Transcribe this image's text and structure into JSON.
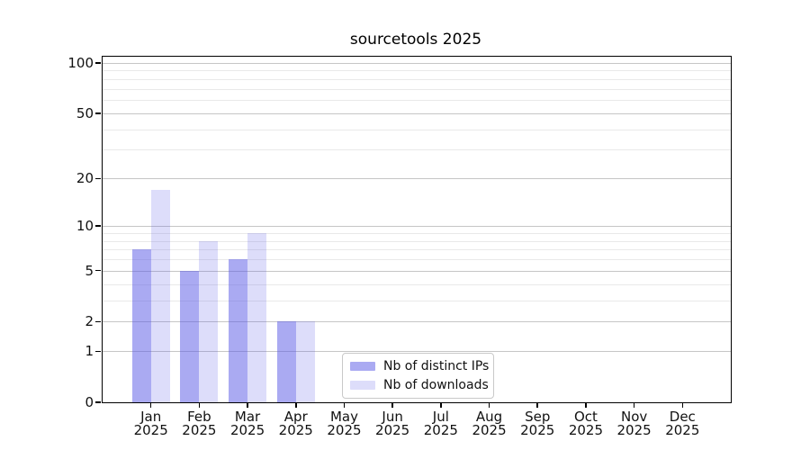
{
  "figure": {
    "title": "sourcetools 2025"
  },
  "legend": {
    "items": [
      {
        "label": "Nb of distinct IPs",
        "color": "rgba(85,85,230,0.5)"
      },
      {
        "label": "Nb of downloads",
        "color": "rgba(85,85,230,0.2)"
      }
    ]
  },
  "colors": {
    "grid_major": "#c6c6c6",
    "grid_minor": "#e9e9e9",
    "spine": "#000000",
    "legend_border": "#c9c9c9"
  },
  "chart_data": {
    "type": "bar",
    "title": "sourcetools 2025",
    "xlabel": "",
    "ylabel": "",
    "grid": true,
    "legend_position": "lower center, inside axes",
    "x": [
      {
        "month": "Jan",
        "year": "2025"
      },
      {
        "month": "Feb",
        "year": "2025"
      },
      {
        "month": "Mar",
        "year": "2025"
      },
      {
        "month": "Apr",
        "year": "2025"
      },
      {
        "month": "May",
        "year": "2025"
      },
      {
        "month": "Jun",
        "year": "2025"
      },
      {
        "month": "Jul",
        "year": "2025"
      },
      {
        "month": "Aug",
        "year": "2025"
      },
      {
        "month": "Sep",
        "year": "2025"
      },
      {
        "month": "Oct",
        "year": "2025"
      },
      {
        "month": "Nov",
        "year": "2025"
      },
      {
        "month": "Dec",
        "year": "2025"
      }
    ],
    "series": [
      {
        "name": "Nb of distinct IPs",
        "color": "rgba(85,85,230,0.5)",
        "values": [
          7,
          5,
          6,
          2,
          0,
          0,
          0,
          0,
          0,
          0,
          0,
          0
        ]
      },
      {
        "name": "Nb of downloads",
        "color": "rgba(85,85,230,0.2)",
        "values": [
          17,
          8,
          9,
          2,
          0,
          0,
          0,
          0,
          0,
          0,
          0,
          0
        ]
      }
    ],
    "y_axis": {
      "scale": "log1p",
      "major_ticks": [
        100,
        50,
        20,
        10,
        5,
        2,
        1,
        0
      ],
      "minor_gridlines": [
        3,
        4,
        6,
        7,
        8,
        9,
        30,
        40,
        60,
        70,
        80,
        90
      ],
      "top_value": 109,
      "bottom_value": 0
    }
  }
}
